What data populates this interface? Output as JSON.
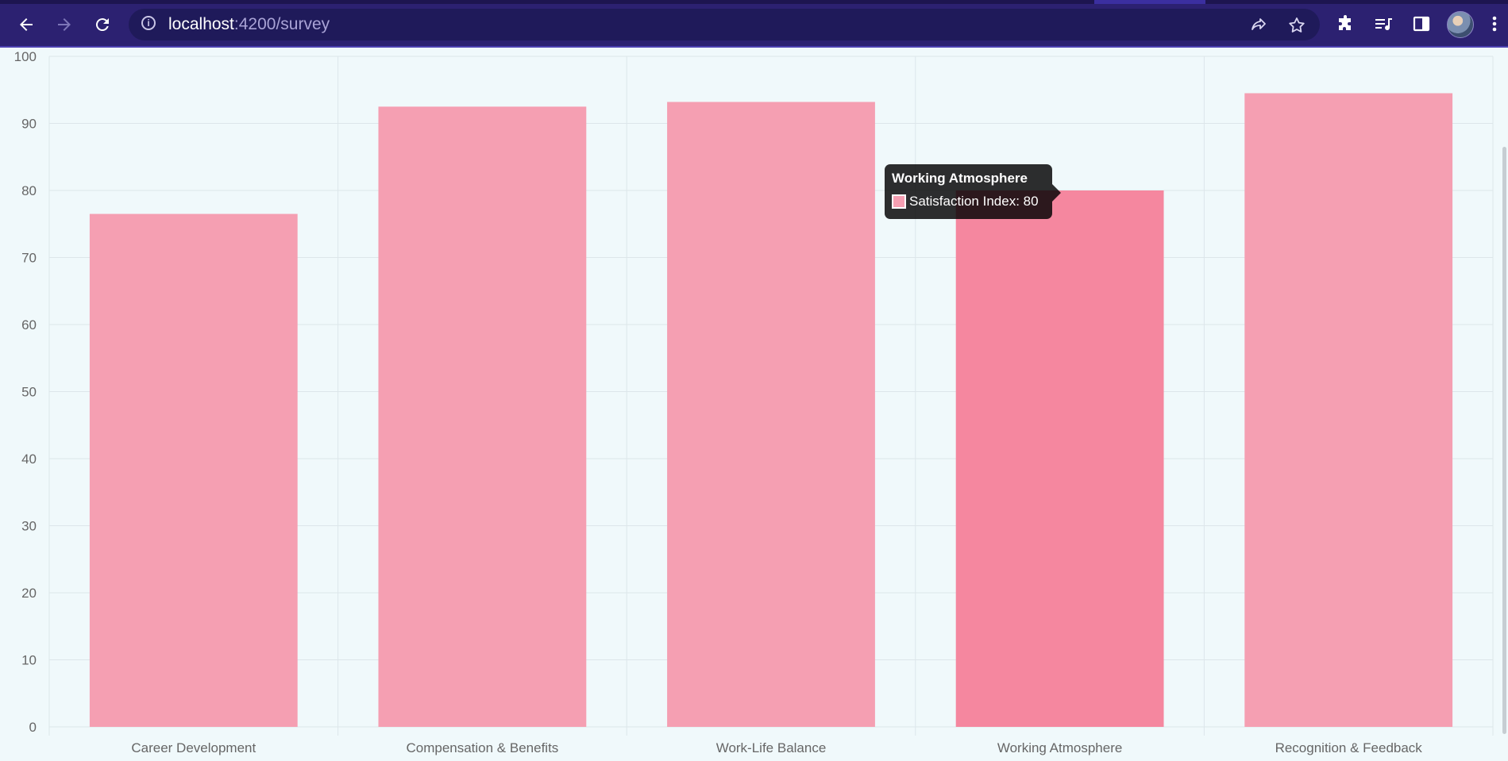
{
  "browser": {
    "url_host": "localhost",
    "url_rest": ":4200/survey",
    "icons": {
      "back": "arrow-left-icon",
      "forward": "arrow-right-icon",
      "reload": "reload-icon",
      "site_info": "info-icon",
      "share": "share-icon",
      "bookmark": "star-icon",
      "extensions": "puzzle-icon",
      "media": "media-queue-icon",
      "side_panel": "side-panel-icon",
      "profile": "avatar",
      "menu": "kebab-menu-icon"
    }
  },
  "chart_data": {
    "type": "bar",
    "categories": [
      "Career Development",
      "Compensation & Benefits",
      "Work-Life Balance",
      "Working Atmosphere",
      "Recognition & Feedback"
    ],
    "series": [
      {
        "name": "Satisfaction Index",
        "values": [
          76.5,
          92.5,
          93.2,
          80,
          94.5
        ],
        "color": "#f59fb2",
        "hover_color": "#f5879f"
      }
    ],
    "ylim": [
      0,
      100
    ],
    "yticks": [
      0,
      10,
      20,
      30,
      40,
      50,
      60,
      70,
      80,
      90,
      100
    ],
    "grid": true,
    "grid_color": "#dde6ea",
    "highlighted_index": 3
  },
  "tooltip": {
    "title": "Working Atmosphere",
    "label": "Satisfaction Index: 80"
  }
}
